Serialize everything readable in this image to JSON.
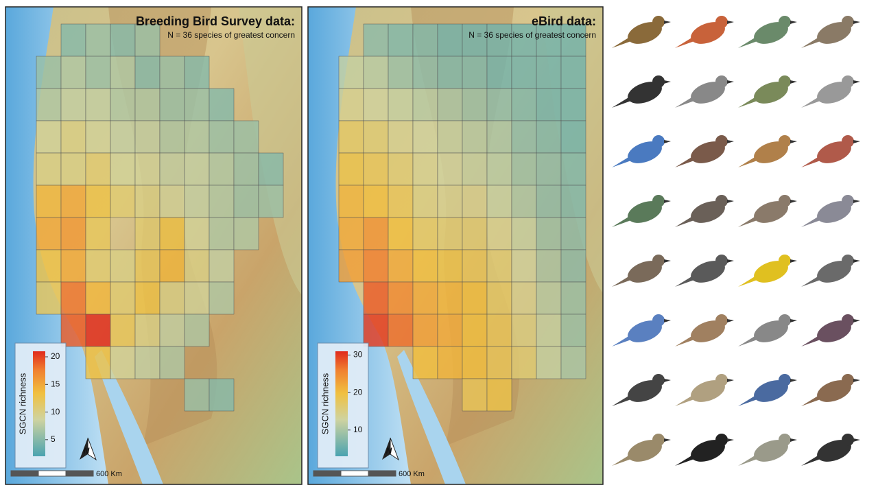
{
  "maps": [
    {
      "title": "Breeding Bird Survey data:",
      "subtitle": "N = 36 species of greatest concern",
      "legend": {
        "label": "SGCN richness",
        "range": [
          2,
          21
        ],
        "ticks": [
          5,
          10,
          15,
          20
        ]
      },
      "scale_label": "600 Km",
      "north": "N",
      "cells": [
        [
          null,
          5,
          6,
          5,
          6,
          null,
          null,
          null,
          null,
          null
        ],
        [
          6,
          7,
          6,
          7,
          5,
          6,
          5,
          null,
          null,
          null
        ],
        [
          7,
          8,
          8,
          7,
          7,
          6,
          6,
          5,
          null,
          null
        ],
        [
          9,
          10,
          9,
          8,
          8,
          7,
          7,
          6,
          6,
          null
        ],
        [
          10,
          10,
          11,
          9,
          9,
          8,
          8,
          7,
          6,
          5
        ],
        [
          14,
          15,
          13,
          11,
          10,
          9,
          8,
          7,
          6,
          6
        ],
        [
          15,
          16,
          12,
          null,
          11,
          13,
          9,
          7,
          7,
          null
        ],
        [
          13,
          15,
          11,
          10,
          12,
          14,
          10,
          8,
          null,
          null
        ],
        [
          12,
          18,
          14,
          11,
          13,
          10,
          9,
          7,
          null,
          null
        ],
        [
          null,
          19,
          21,
          12,
          10,
          8,
          7,
          null,
          null,
          null
        ],
        [
          null,
          null,
          13,
          9,
          8,
          7,
          null,
          null,
          null,
          null
        ],
        [
          null,
          null,
          null,
          null,
          null,
          null,
          6,
          5,
          null,
          null
        ]
      ]
    },
    {
      "title": "eBird data:",
      "subtitle": "N = 36 species of greatest concern",
      "legend": {
        "label": "SGCN richness",
        "range": [
          3,
          31
        ],
        "ticks": [
          10,
          20,
          30
        ]
      },
      "scale_label": "600 Km",
      "north": "N",
      "cells": [
        [
          null,
          8,
          7,
          7,
          6,
          6,
          6,
          6,
          6,
          6
        ],
        [
          12,
          11,
          9,
          8,
          7,
          7,
          6,
          6,
          6,
          6
        ],
        [
          14,
          13,
          12,
          11,
          10,
          9,
          8,
          7,
          6,
          6
        ],
        [
          17,
          16,
          14,
          13,
          12,
          11,
          10,
          8,
          7,
          6
        ],
        [
          19,
          18,
          16,
          14,
          13,
          12,
          11,
          9,
          8,
          7
        ],
        [
          21,
          20,
          18,
          15,
          14,
          14,
          12,
          10,
          8,
          7
        ],
        [
          22,
          24,
          20,
          17,
          16,
          16,
          14,
          12,
          9,
          8
        ],
        [
          23,
          26,
          22,
          20,
          19,
          18,
          16,
          13,
          10,
          8
        ],
        [
          null,
          28,
          25,
          22,
          21,
          20,
          17,
          14,
          11,
          9
        ],
        [
          null,
          30,
          27,
          23,
          22,
          20,
          18,
          15,
          12,
          9
        ],
        [
          null,
          null,
          null,
          20,
          21,
          20,
          18,
          16,
          12,
          10
        ],
        [
          null,
          null,
          null,
          null,
          null,
          18,
          19,
          null,
          null,
          null
        ]
      ]
    }
  ]
}
